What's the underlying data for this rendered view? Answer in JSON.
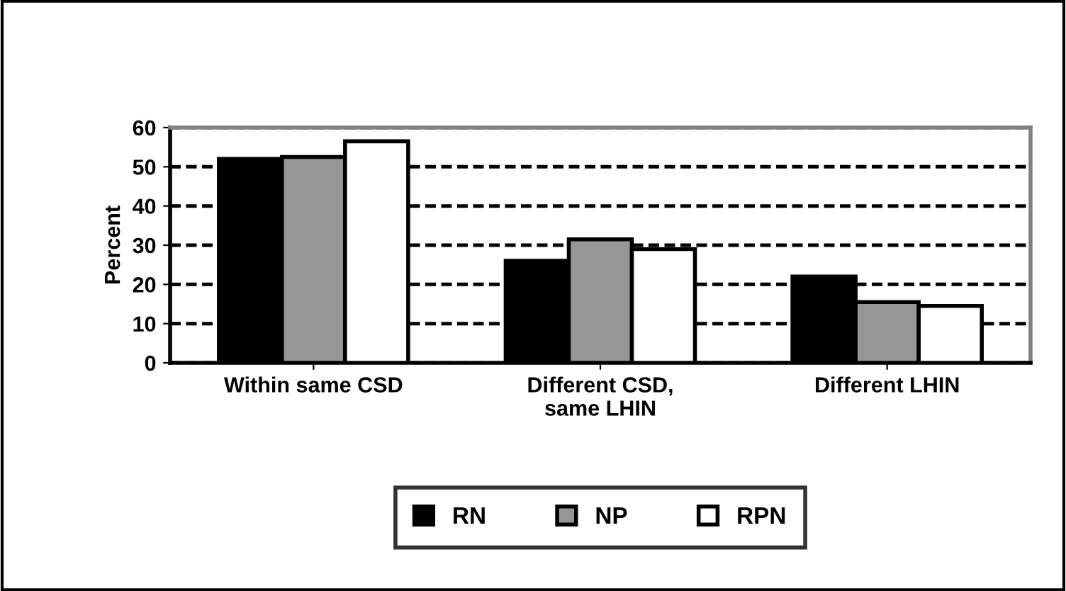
{
  "chart_data": {
    "type": "bar",
    "ylabel": "Percent",
    "categories": [
      "Within same CSD",
      "Different CSD,\nsame LHIN",
      "Different LHIN"
    ],
    "series": [
      {
        "name": "RN",
        "color": "#000000",
        "values": [
          52,
          26,
          22
        ]
      },
      {
        "name": "NP",
        "color": "#969696",
        "values": [
          52.5,
          31.5,
          15.5
        ]
      },
      {
        "name": "RPN",
        "color": "#ffffff",
        "values": [
          56.5,
          29,
          14.5
        ]
      }
    ],
    "ylim": [
      0,
      60
    ],
    "yticks": [
      0,
      10,
      20,
      30,
      40,
      50,
      60
    ],
    "grid": "y",
    "legend": "bottom"
  }
}
